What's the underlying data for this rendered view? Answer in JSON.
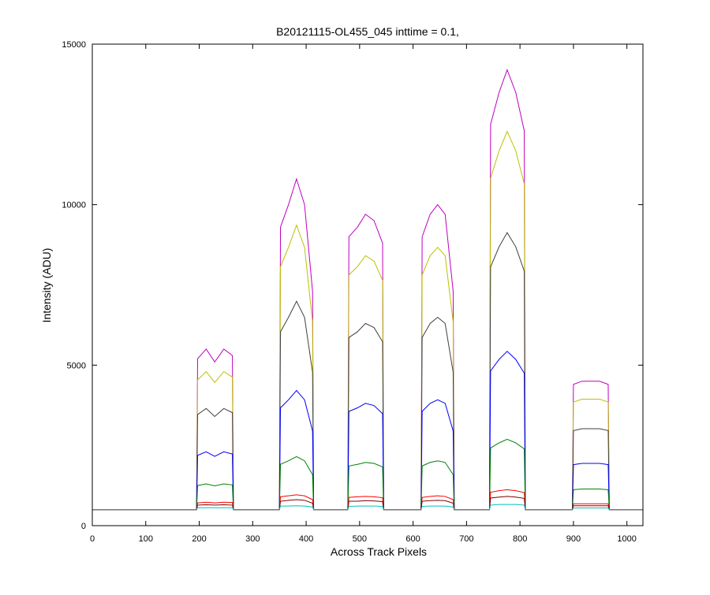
{
  "chart_data": {
    "type": "line",
    "title": "B20121115-OL455_045 inttime = 0.1,",
    "x_label": "Across Track Pixels",
    "y_label": "Intensity (ADU)",
    "xlim": [
      0,
      1030
    ],
    "ylim": [
      0,
      15000
    ],
    "xticks": [
      0,
      100,
      200,
      300,
      400,
      500,
      600,
      700,
      800,
      900,
      1000
    ],
    "yticks": [
      0,
      5000,
      10000,
      15000
    ],
    "grid": false,
    "x": [
      0,
      195,
      197,
      213,
      229,
      246,
      262,
      264,
      350,
      352,
      367,
      382,
      397,
      412,
      414,
      478,
      480,
      496,
      511,
      527,
      543,
      545,
      615,
      617,
      632,
      646,
      660,
      675,
      677,
      743,
      745,
      761,
      776,
      792,
      808,
      810,
      898,
      900,
      916,
      932,
      949,
      965,
      967,
      1030
    ],
    "series": [
      {
        "color": "#bf00bf",
        "values": [
          500,
          500,
          5200,
          5500,
          5100,
          5500,
          5300,
          500,
          500,
          9300,
          10000,
          10800,
          10000,
          7300,
          500,
          500,
          9000,
          9300,
          9700,
          9500,
          8800,
          500,
          500,
          9000,
          9700,
          10000,
          9700,
          7300,
          500,
          500,
          12500,
          13500,
          14200,
          13500,
          12300,
          500,
          500,
          4400,
          4500,
          4500,
          4500,
          4400,
          500,
          500
        ]
      },
      {
        "color": "#bfbf00",
        "values": [
          500,
          500,
          4540,
          4800,
          4460,
          4800,
          4630,
          500,
          500,
          8070,
          8670,
          9360,
          8670,
          6350,
          500,
          500,
          7810,
          8070,
          8410,
          8240,
          7640,
          500,
          500,
          7810,
          8410,
          8670,
          8410,
          6350,
          500,
          500,
          10820,
          11680,
          12280,
          11680,
          10650,
          500,
          500,
          3850,
          3940,
          3940,
          3940,
          3850,
          500,
          500
        ]
      },
      {
        "color": "#404040",
        "values": [
          500,
          500,
          3460,
          3650,
          3400,
          3650,
          3520,
          500,
          500,
          6040,
          6490,
          6990,
          6490,
          4780,
          500,
          500,
          5860,
          6040,
          6300,
          6170,
          5730,
          500,
          500,
          5860,
          6300,
          6490,
          6300,
          4780,
          500,
          500,
          8060,
          8690,
          9130,
          8690,
          7930,
          500,
          500,
          2960,
          3020,
          3020,
          3020,
          2960,
          500,
          500
        ]
      },
      {
        "color": "#0000ff",
        "values": [
          500,
          500,
          2190,
          2300,
          2160,
          2300,
          2230,
          500,
          500,
          3670,
          3920,
          4210,
          3920,
          2950,
          500,
          500,
          3560,
          3670,
          3810,
          3740,
          3490,
          500,
          500,
          3560,
          3810,
          3920,
          3810,
          2950,
          500,
          500,
          4820,
          5180,
          5430,
          5180,
          4750,
          500,
          500,
          1900,
          1940,
          1940,
          1940,
          1900,
          500,
          500
        ]
      },
      {
        "color": "#008000",
        "values": [
          500,
          500,
          1250,
          1300,
          1240,
          1300,
          1270,
          500,
          500,
          1910,
          2020,
          2150,
          2020,
          1590,
          500,
          500,
          1860,
          1910,
          1970,
          1940,
          1830,
          500,
          500,
          1860,
          1970,
          2020,
          1970,
          1590,
          500,
          500,
          2420,
          2580,
          2690,
          2580,
          2390,
          500,
          500,
          1120,
          1140,
          1140,
          1140,
          1120,
          500,
          500
        ]
      },
      {
        "color": "#ff0000",
        "values": [
          500,
          500,
          710,
          730,
          710,
          730,
          720,
          500,
          500,
          900,
          930,
          960,
          930,
          810,
          500,
          500,
          880,
          900,
          910,
          900,
          870,
          500,
          500,
          880,
          910,
          930,
          910,
          810,
          500,
          500,
          1040,
          1090,
          1120,
          1090,
          1030,
          500,
          500,
          680,
          680,
          680,
          680,
          680,
          500,
          500
        ]
      },
      {
        "color": "#800000",
        "values": [
          500,
          500,
          640,
          650,
          640,
          650,
          640,
          500,
          500,
          760,
          790,
          810,
          790,
          700,
          500,
          500,
          760,
          760,
          780,
          770,
          750,
          500,
          500,
          760,
          780,
          790,
          780,
          700,
          500,
          500,
          860,
          890,
          910,
          890,
          850,
          500,
          500,
          620,
          620,
          620,
          620,
          620,
          500,
          500
        ]
      },
      {
        "color": "#00bfbf",
        "values": [
          500,
          500,
          560,
          560,
          560,
          560,
          560,
          500,
          500,
          610,
          610,
          620,
          610,
          580,
          500,
          500,
          600,
          610,
          610,
          610,
          600,
          500,
          500,
          600,
          610,
          610,
          610,
          580,
          500,
          500,
          640,
          660,
          660,
          660,
          640,
          500,
          500,
          550,
          550,
          550,
          550,
          550,
          500,
          500
        ]
      }
    ]
  }
}
